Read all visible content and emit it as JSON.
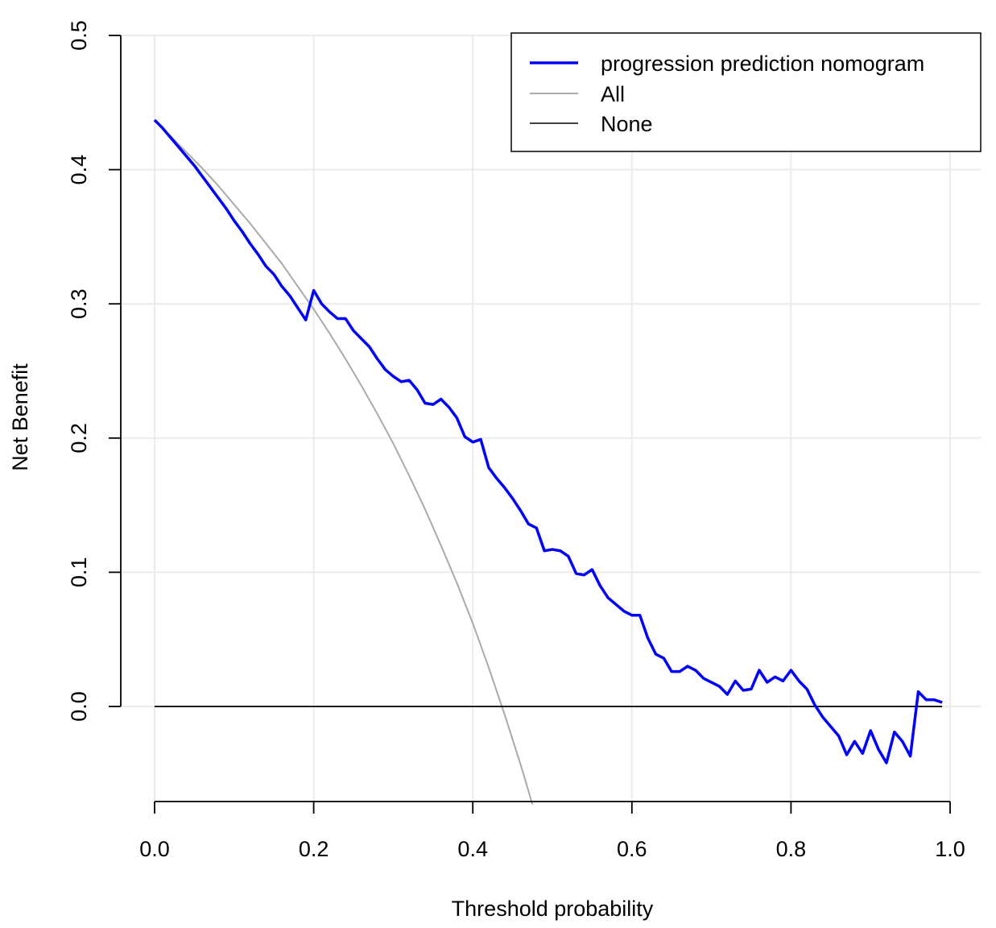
{
  "chart_data": {
    "type": "line",
    "title": "",
    "xlabel": "Threshold probability",
    "ylabel": "Net Benefit",
    "xlim": [
      0,
      1
    ],
    "ylim": [
      -0.07,
      0.5
    ],
    "x_ticks": [
      0.0,
      0.2,
      0.4,
      0.6,
      0.8,
      1.0
    ],
    "x_tick_labels": [
      "0.0",
      "0.2",
      "0.4",
      "0.6",
      "0.8",
      "1.0"
    ],
    "y_ticks": [
      0.0,
      0.1,
      0.2,
      0.3,
      0.4,
      0.5
    ],
    "y_tick_labels": [
      "0.0",
      "0.1",
      "0.2",
      "0.3",
      "0.4",
      "0.5"
    ],
    "grid": true,
    "legend_position": "top-right",
    "series": [
      {
        "name": "progression prediction nomogram",
        "color": "#0000ff",
        "x": [
          0.0,
          0.01,
          0.02,
          0.03,
          0.04,
          0.05,
          0.06,
          0.07,
          0.08,
          0.09,
          0.1,
          0.11,
          0.12,
          0.13,
          0.14,
          0.15,
          0.16,
          0.17,
          0.18,
          0.19,
          0.2,
          0.21,
          0.22,
          0.23,
          0.24,
          0.25,
          0.26,
          0.27,
          0.28,
          0.29,
          0.3,
          0.31,
          0.32,
          0.33,
          0.34,
          0.35,
          0.36,
          0.37,
          0.38,
          0.39,
          0.4,
          0.41,
          0.42,
          0.43,
          0.44,
          0.45,
          0.46,
          0.47,
          0.48,
          0.49,
          0.5,
          0.51,
          0.52,
          0.53,
          0.54,
          0.55,
          0.56,
          0.57,
          0.58,
          0.59,
          0.6,
          0.61,
          0.62,
          0.63,
          0.64,
          0.65,
          0.66,
          0.67,
          0.68,
          0.69,
          0.7,
          0.71,
          0.72,
          0.73,
          0.74,
          0.75,
          0.76,
          0.77,
          0.78,
          0.79,
          0.8,
          0.81,
          0.82,
          0.83,
          0.84,
          0.85,
          0.86,
          0.87,
          0.88,
          0.89,
          0.9,
          0.91,
          0.92,
          0.93,
          0.94,
          0.95,
          0.96,
          0.97,
          0.98,
          0.99
        ],
        "y": [
          0.437,
          0.431,
          0.424,
          0.417,
          0.41,
          0.403,
          0.395,
          0.387,
          0.379,
          0.371,
          0.362,
          0.354,
          0.345,
          0.337,
          0.328,
          0.322,
          0.313,
          0.306,
          0.297,
          0.288,
          0.31,
          0.3,
          0.294,
          0.289,
          0.289,
          0.28,
          0.274,
          0.268,
          0.259,
          0.251,
          0.246,
          0.242,
          0.243,
          0.236,
          0.226,
          0.225,
          0.229,
          0.223,
          0.215,
          0.201,
          0.197,
          0.199,
          0.178,
          0.17,
          0.163,
          0.155,
          0.146,
          0.136,
          0.133,
          0.116,
          0.117,
          0.116,
          0.112,
          0.099,
          0.098,
          0.102,
          0.09,
          0.081,
          0.076,
          0.071,
          0.068,
          0.068,
          0.051,
          0.039,
          0.036,
          0.026,
          0.026,
          0.03,
          0.027,
          0.021,
          0.018,
          0.015,
          0.009,
          0.019,
          0.012,
          0.013,
          0.027,
          0.018,
          0.022,
          0.019,
          0.027,
          0.019,
          0.013,
          0.001,
          -0.008,
          -0.015,
          -0.022,
          -0.036,
          -0.026,
          -0.035,
          -0.018,
          -0.032,
          -0.042,
          -0.019,
          -0.026,
          -0.037,
          0.011,
          0.005,
          0.005,
          0.003
        ]
      },
      {
        "name": "All",
        "color": "#aaaaaa",
        "prevalence": 0.437,
        "x": [
          0.0,
          0.02,
          0.04,
          0.06,
          0.08,
          0.1,
          0.12,
          0.14,
          0.16,
          0.18,
          0.2,
          0.22,
          0.24,
          0.26,
          0.28,
          0.3,
          0.32,
          0.34,
          0.36,
          0.38,
          0.4,
          0.42,
          0.44,
          0.46,
          0.475
        ],
        "y": [
          0.437,
          0.425,
          0.413,
          0.401,
          0.388,
          0.374,
          0.36,
          0.345,
          0.33,
          0.313,
          0.296,
          0.278,
          0.259,
          0.239,
          0.218,
          0.196,
          0.172,
          0.147,
          0.12,
          0.092,
          0.062,
          0.029,
          -0.006,
          -0.043,
          -0.073
        ]
      },
      {
        "name": "None",
        "color": "#000000",
        "x": [
          0.0,
          0.99
        ],
        "y": [
          0.0,
          0.0
        ]
      }
    ]
  }
}
